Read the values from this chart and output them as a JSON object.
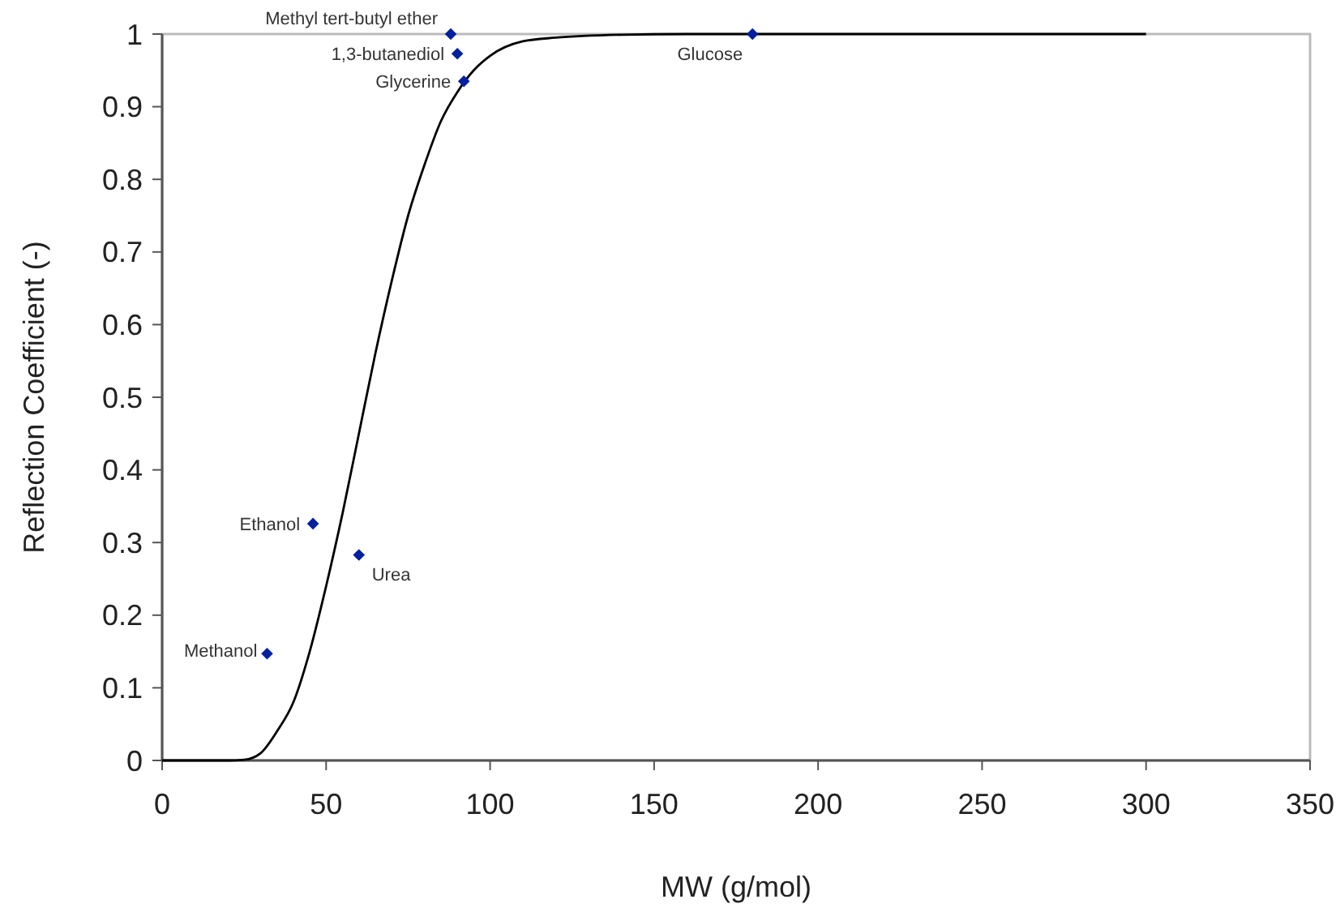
{
  "chart_data": {
    "type": "scatter",
    "xlabel": "MW (g/mol)",
    "ylabel": "Reflection Coefficient (-)",
    "xlim": [
      0,
      350
    ],
    "xticks": [
      0,
      50,
      100,
      150,
      200,
      250,
      300,
      350
    ],
    "ylim": [
      0,
      1
    ],
    "yticks": [
      0,
      0.1,
      0.2,
      0.3,
      0.4,
      0.5,
      0.6,
      0.7,
      0.8,
      0.9,
      1
    ],
    "grid": false,
    "marker": "diamond",
    "series": [
      {
        "type": "line",
        "color": "#000000",
        "marker": "none",
        "x": [
          0,
          20,
          25,
          30,
          35,
          40,
          45,
          50,
          55,
          60,
          65,
          70,
          75,
          80,
          85,
          90,
          95,
          100,
          110,
          120,
          140,
          160,
          200,
          250,
          300
        ],
        "values": [
          0,
          0,
          0.001,
          0.01,
          0.04,
          0.08,
          0.15,
          0.24,
          0.34,
          0.45,
          0.56,
          0.66,
          0.75,
          0.82,
          0.88,
          0.92,
          0.95,
          0.97,
          0.99,
          0.995,
          0.999,
          1,
          1,
          1,
          1
        ]
      },
      {
        "color": "#00209f",
        "x": [
          32,
          46,
          60,
          88,
          90,
          92,
          180
        ],
        "values": [
          0.147,
          0.326,
          0.283,
          1.0,
          0.973,
          0.935,
          1.0
        ]
      }
    ],
    "annotations": [
      {
        "text": "Methanol",
        "x": 32,
        "y": 0.147
      },
      {
        "text": "Ethanol",
        "x": 46,
        "y": 0.326
      },
      {
        "text": "Urea",
        "x": 60,
        "y": 0.283
      },
      {
        "text": "Methyl tert-butyl ether",
        "x": 88,
        "y": 1.0
      },
      {
        "text": "1,3-butanediol",
        "x": 90,
        "y": 0.973
      },
      {
        "text": "Glycerine",
        "x": 92,
        "y": 0.935
      },
      {
        "text": "Glucose",
        "x": 180,
        "y": 1.0
      }
    ]
  }
}
